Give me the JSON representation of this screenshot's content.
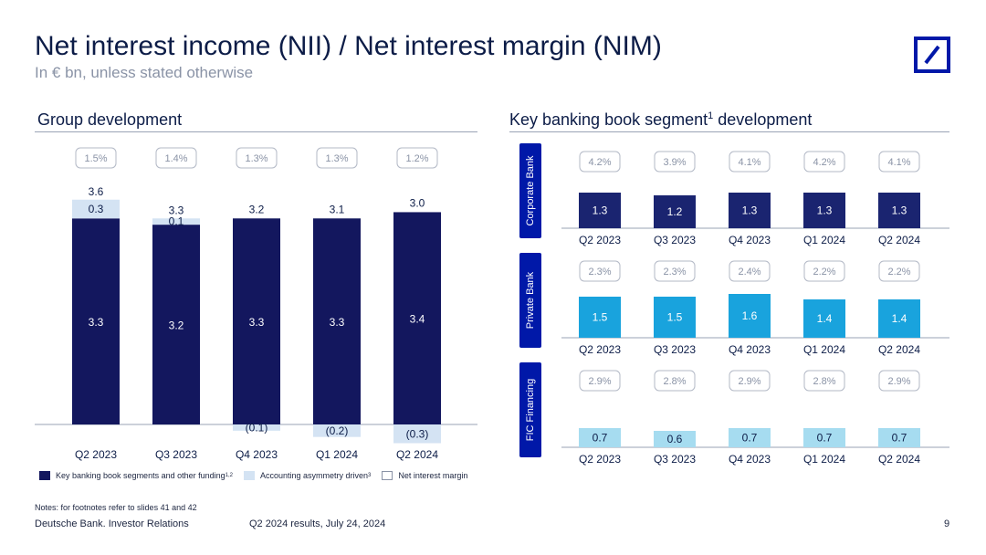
{
  "header": {
    "title": "Net interest income (NII) / Net interest margin (NIM)",
    "subtitle": "In € bn, unless stated otherwise"
  },
  "left": {
    "heading": "Group development"
  },
  "right": {
    "heading": "Key banking book segment",
    "heading_sup": "1",
    "heading_tail": " development"
  },
  "legend": {
    "item1": "Key banking book segments and other funding",
    "item1_sup": "1,2",
    "item2": "Accounting asymmetry driven",
    "item2_sup": "3",
    "item3": "Net interest margin"
  },
  "notes": "Notes: for footnotes refer to slides 41 and 42",
  "footer": {
    "left": "Deutsche Bank. Investor Relations",
    "center": "Q2 2024 results, July 24, 2024",
    "page": "9"
  },
  "colors": {
    "navy": "#13175e",
    "light_blue": "#d4e3f3",
    "brand_blue": "#0018a8",
    "corporate": "#1a2470",
    "private": "#19a3dd",
    "fic": "#a6dcf0"
  },
  "chart_data": [
    {
      "type": "bar",
      "name": "group",
      "categories": [
        "Q2 2023",
        "Q3 2023",
        "Q4 2023",
        "Q1 2024",
        "Q2 2024"
      ],
      "series": [
        {
          "name": "Key banking book segments and other funding",
          "values": [
            3.3,
            3.2,
            3.3,
            3.3,
            3.4
          ],
          "labels": [
            "3.3",
            "3.2",
            "3.3",
            "3.3",
            "3.4"
          ]
        },
        {
          "name": "Accounting asymmetry driven",
          "values": [
            0.3,
            0.1,
            -0.1,
            -0.2,
            -0.3
          ],
          "labels": [
            "0.3",
            "0.1",
            "(0.1)",
            "(0.2)",
            "(0.3)"
          ]
        }
      ],
      "totals": [
        "3.6",
        "3.3",
        "3.2",
        "3.1",
        "3.0"
      ],
      "margins": [
        "1.5%",
        "1.4%",
        "1.3%",
        "1.3%",
        "1.2%"
      ]
    },
    {
      "type": "bar",
      "name": "Corporate Bank",
      "categories": [
        "Q2 2023",
        "Q3 2023",
        "Q4 2023",
        "Q1 2024",
        "Q2 2024"
      ],
      "values": [
        1.3,
        1.2,
        1.3,
        1.3,
        1.3
      ],
      "labels": [
        "1.3",
        "1.2",
        "1.3",
        "1.3",
        "1.3"
      ],
      "margins": [
        "4.2%",
        "3.9%",
        "4.1%",
        "4.2%",
        "4.1%"
      ]
    },
    {
      "type": "bar",
      "name": "Private Bank",
      "categories": [
        "Q2 2023",
        "Q3 2023",
        "Q4 2023",
        "Q1 2024",
        "Q2 2024"
      ],
      "values": [
        1.5,
        1.5,
        1.6,
        1.4,
        1.4
      ],
      "labels": [
        "1.5",
        "1.5",
        "1.6",
        "1.4",
        "1.4"
      ],
      "margins": [
        "2.3%",
        "2.3%",
        "2.4%",
        "2.2%",
        "2.2%"
      ]
    },
    {
      "type": "bar",
      "name": "FIC Financing",
      "categories": [
        "Q2 2023",
        "Q3 2023",
        "Q4 2023",
        "Q1 2024",
        "Q2 2024"
      ],
      "values": [
        0.7,
        0.6,
        0.7,
        0.7,
        0.7
      ],
      "labels": [
        "0.7",
        "0.6",
        "0.7",
        "0.7",
        "0.7"
      ],
      "margins": [
        "2.9%",
        "2.8%",
        "2.9%",
        "2.8%",
        "2.9%"
      ]
    }
  ]
}
